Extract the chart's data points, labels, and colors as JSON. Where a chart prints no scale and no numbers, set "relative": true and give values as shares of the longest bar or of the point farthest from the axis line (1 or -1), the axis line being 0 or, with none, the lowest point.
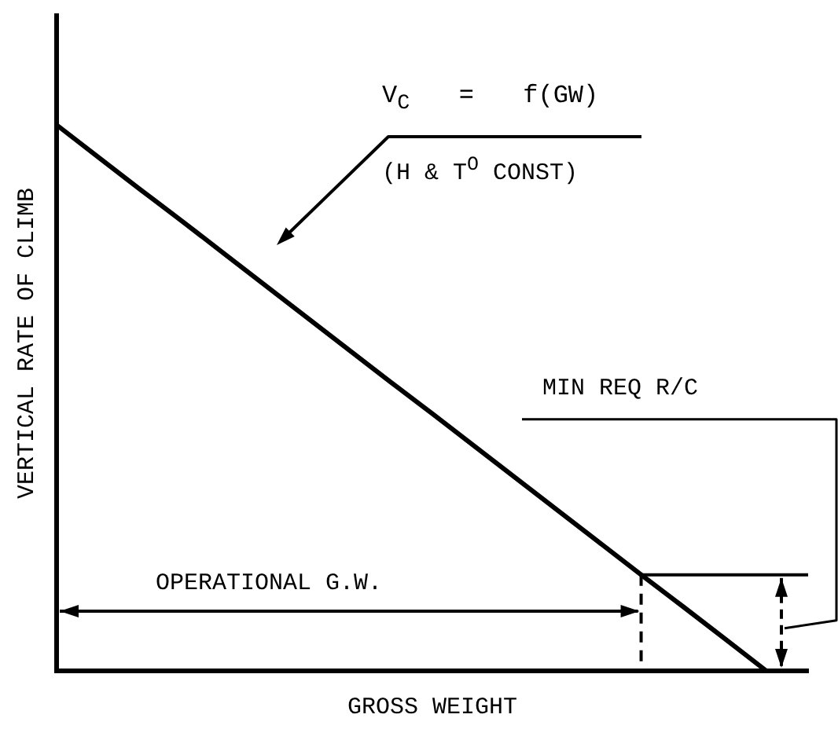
{
  "chart_data": {
    "type": "line",
    "relative": true,
    "xlabel": "GROSS WEIGHT",
    "ylabel": "VERTICAL RATE OF CLIMB",
    "categories": [
      null,
      null,
      null,
      null,
      null,
      null,
      null,
      null,
      null,
      null,
      null,
      null,
      null,
      null,
      null,
      null,
      null,
      null,
      null
    ],
    "series": [
      {
        "color": "#000000",
        "values": [
          1,
          0.941,
          0.882,
          0.824,
          0.765,
          0.706,
          0.647,
          0.588,
          0.529,
          0.471,
          0.412,
          0.353,
          0.294,
          0.235,
          0.176,
          0.118,
          0.059,
          0,
          null
        ]
      }
    ],
    "marker": "none",
    "line_style": "solid",
    "grid": false,
    "legend": false,
    "ref_lines": [
      {
        "axis": "y",
        "value": 0.176,
        "label": "MIN REQ R/C",
        "color": "#000000",
        "line_style": "solid"
      }
    ],
    "annotations": [
      "V$_{C}$ = f(GW)",
      "(H & T$^{O}$ CONST)",
      "OPERATIONAL G.W."
    ]
  }
}
